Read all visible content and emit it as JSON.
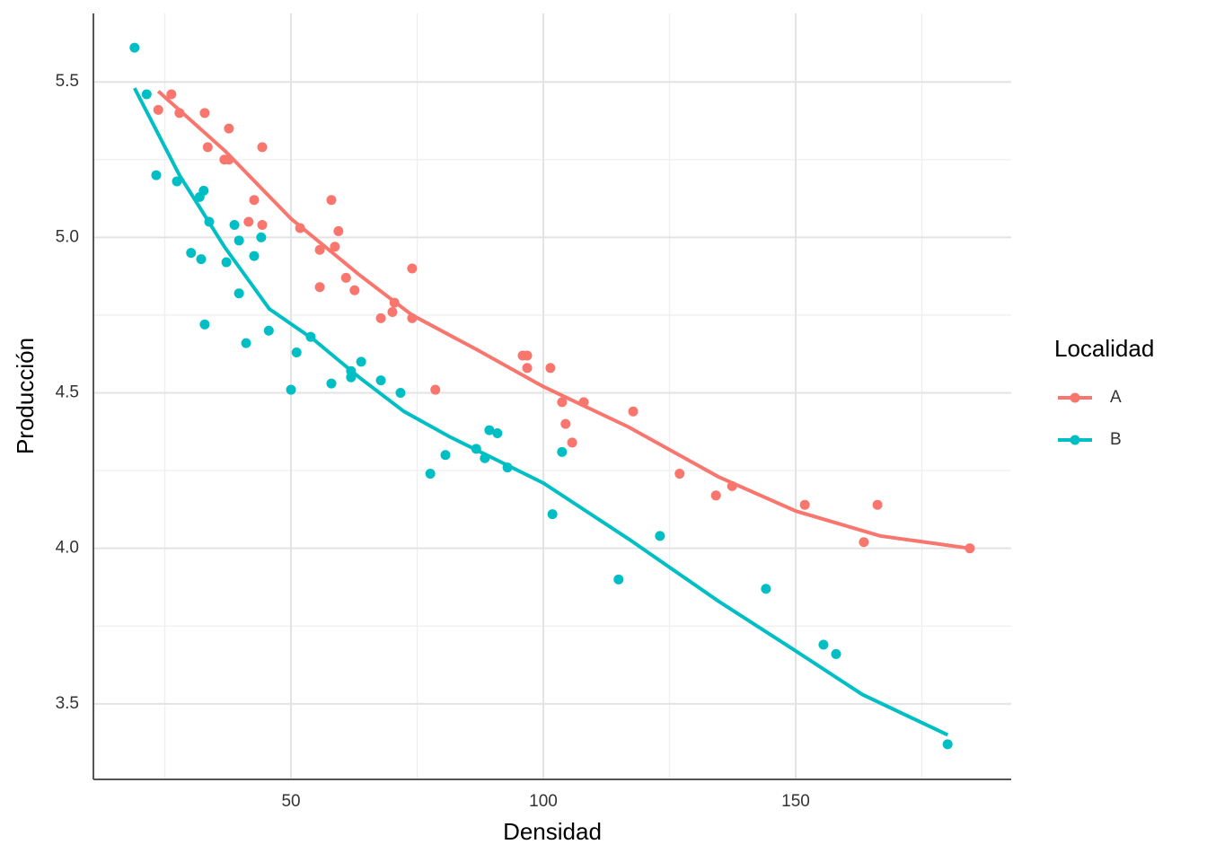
{
  "chart_data": {
    "type": "scatter",
    "x_label": "Densidad",
    "y_label": "Producción",
    "legend_title": "Localidad",
    "legend": "right",
    "grid": true,
    "xlim": [
      10.85,
      192.7
    ],
    "ylim": [
      3.257,
      5.72
    ],
    "xticks": [
      50,
      100,
      150
    ],
    "xminor": [
      25,
      75,
      125,
      175
    ],
    "yticks": [
      3.5,
      {
        "value": 4,
        "label": "4.0"
      },
      4.5,
      {
        "value": 5,
        "label": "5.0"
      },
      5.5
    ],
    "yminor": [
      3.75,
      4.25,
      4.75,
      5.25
    ],
    "series": [
      {
        "name": "A",
        "color": "#F8766D",
        "x": [
          23.7,
          26.3,
          27.9,
          32.9,
          33.5,
          36.8,
          37.7,
          37.7,
          44.3,
          42.7,
          41.6,
          44.3,
          51.8,
          58.0,
          59.4,
          58.7,
          55.7,
          60.9,
          55.7,
          62.6,
          74.0,
          70.5,
          70.1,
          67.8,
          74.0,
          78.6,
          95.9,
          96.8,
          96.8,
          101.4,
          103.7,
          108.0,
          104.4,
          105.7,
          117.8,
          127.0,
          134.2,
          137.4,
          151.8,
          166.2,
          163.5,
          184.5
        ],
        "values": [
          5.41,
          5.46,
          5.4,
          5.4,
          5.29,
          5.25,
          5.35,
          5.25,
          5.29,
          5.12,
          5.05,
          5.04,
          5.03,
          5.12,
          5.02,
          4.97,
          4.96,
          4.87,
          4.84,
          4.83,
          4.9,
          4.79,
          4.76,
          4.74,
          4.74,
          4.51,
          4.62,
          4.62,
          4.58,
          4.58,
          4.47,
          4.47,
          4.4,
          4.34,
          4.44,
          4.24,
          4.17,
          4.2,
          4.14,
          4.14,
          4.02,
          4.0
        ],
        "smooth_x": [
          23.7,
          36.8,
          50,
          63.5,
          74,
          86.7,
          100,
          116.9,
          134.7,
          150,
          166.7,
          184.5
        ],
        "smooth_y": [
          5.47,
          5.28,
          5.06,
          4.88,
          4.75,
          4.64,
          4.52,
          4.39,
          4.23,
          4.12,
          4.04,
          4.0
        ]
      },
      {
        "name": "B",
        "color": "#00BFC4",
        "x": [
          19.0,
          21.4,
          23.3,
          27.4,
          32.7,
          31.9,
          33.8,
          38.8,
          39.7,
          44.1,
          30.2,
          32.2,
          37.2,
          42.7,
          39.7,
          32.9,
          45.6,
          41.1,
          53.9,
          51.1,
          63.9,
          61.9,
          61.9,
          58.0,
          67.8,
          71.7,
          50.0,
          77.6,
          80.6,
          86.7,
          89.3,
          90.9,
          88.4,
          92.9,
          103.7,
          101.8,
          123.1,
          114.9,
          144.1,
          155.5,
          158.0,
          180.1
        ],
        "values": [
          5.61,
          5.46,
          5.2,
          5.18,
          5.15,
          5.13,
          5.05,
          5.04,
          4.99,
          5.0,
          4.95,
          4.93,
          4.92,
          4.94,
          4.82,
          4.72,
          4.7,
          4.66,
          4.68,
          4.63,
          4.6,
          4.57,
          4.55,
          4.53,
          4.54,
          4.5,
          4.51,
          4.24,
          4.3,
          4.32,
          4.38,
          4.37,
          4.29,
          4.26,
          4.31,
          4.11,
          4.04,
          3.9,
          3.87,
          3.69,
          3.66,
          3.37
        ],
        "smooth_x": [
          19,
          27.9,
          36.8,
          45.7,
          54.6,
          63.5,
          72.4,
          81.3,
          100,
          116.9,
          134.7,
          150,
          163.2,
          180.1
        ],
        "smooth_y": [
          5.48,
          5.2,
          4.97,
          4.77,
          4.67,
          4.55,
          4.44,
          4.36,
          4.21,
          4.03,
          3.83,
          3.67,
          3.53,
          3.4
        ]
      }
    ]
  }
}
